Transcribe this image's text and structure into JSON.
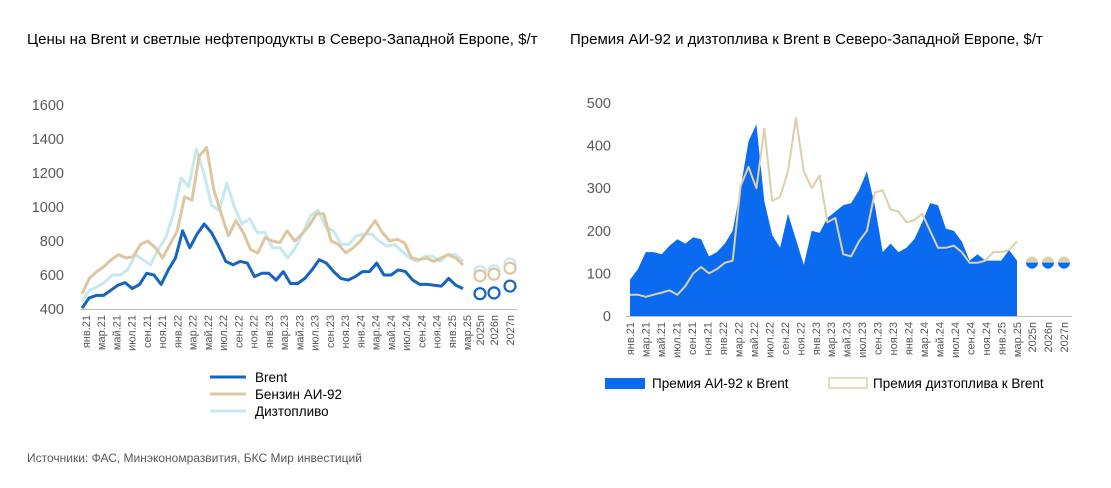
{
  "source": "Источники: ФАС, Минэкономразвития, БКС Мир инвестиций",
  "chart_data": [
    {
      "type": "line",
      "title": "Цены на Brent и светлые нефтепродукты в Северо-Западной Европе, $/т",
      "ylim": [
        400,
        1600
      ],
      "yticks": [
        "400",
        "600",
        "800",
        "1000",
        "1200",
        "1400",
        "1600"
      ],
      "grid": false,
      "legend": "bottom",
      "x_labels": [
        "янв.21",
        "мар.21",
        "май.21",
        "июл.21",
        "сен.21",
        "ноя.21",
        "янв.22",
        "мар.22",
        "май.22",
        "июл.22",
        "сен.22",
        "ноя.22",
        "янв.23",
        "мар.23",
        "май.23",
        "июл.23",
        "сен.23",
        "ноя.23",
        "янв.24",
        "мар.24",
        "май.24",
        "июл.24",
        "сен.24",
        "ноя.24",
        "янв.25",
        "мар.25"
      ],
      "forecast_labels": [
        "2025п",
        "2026п",
        "2027п"
      ],
      "series": [
        {
          "name": "Brent",
          "color": "#1565C0",
          "values": [
            405,
            465,
            480,
            480,
            510,
            540,
            555,
            520,
            545,
            610,
            600,
            545,
            630,
            700,
            860,
            760,
            840,
            900,
            850,
            770,
            680,
            660,
            680,
            670,
            590,
            610,
            610,
            570,
            620,
            550,
            550,
            580,
            630,
            690,
            670,
            620,
            580,
            570,
            590,
            620,
            620,
            670,
            600,
            600,
            630,
            620,
            570,
            545,
            545,
            540,
            535,
            580,
            540,
            520
          ],
          "forecast": [
            490,
            495,
            535
          ]
        },
        {
          "name": "Бензин АИ-92",
          "color": "#DCC8A0",
          "values": [
            490,
            580,
            620,
            650,
            690,
            720,
            700,
            710,
            780,
            800,
            760,
            700,
            780,
            860,
            1060,
            1040,
            1300,
            1350,
            1100,
            960,
            830,
            920,
            850,
            750,
            730,
            820,
            800,
            790,
            860,
            800,
            840,
            890,
            960,
            960,
            800,
            780,
            730,
            760,
            800,
            860,
            920,
            850,
            800,
            810,
            790,
            700,
            690,
            700,
            680,
            700,
            720,
            700,
            660
          ],
          "forecast": [
            595,
            605,
            640
          ]
        },
        {
          "name": "Дизтопливо",
          "color": "#C8E8F0",
          "values": [
            450,
            510,
            530,
            560,
            600,
            600,
            630,
            720,
            690,
            660,
            750,
            820,
            960,
            1170,
            1120,
            1340,
            1200,
            1010,
            980,
            1140,
            1000,
            900,
            930,
            850,
            850,
            760,
            760,
            700,
            760,
            850,
            950,
            980,
            880,
            860,
            780,
            780,
            830,
            840,
            840,
            800,
            770,
            780,
            740,
            700,
            680,
            710,
            710,
            680,
            720,
            720,
            680
          ],
          "forecast": [
            620,
            625,
            665
          ]
        }
      ]
    },
    {
      "type": "area",
      "title": "Премия АИ-92 и дизтоплива к Brent в Северо-Западной Европе, $/т",
      "ylim": [
        0,
        500
      ],
      "yticks": [
        "0",
        "100",
        "200",
        "300",
        "400",
        "500"
      ],
      "grid": false,
      "legend": "bottom",
      "x_labels": [
        "янв.21",
        "мар.21",
        "май.21",
        "июл.21",
        "сен.21",
        "ноя.21",
        "янв.22",
        "мар.22",
        "май.22",
        "июл.22",
        "сен.22",
        "ноя.22",
        "янв.23",
        "мар.23",
        "май.23",
        "июл.23",
        "сен.23",
        "ноя.23",
        "янв.24",
        "мар.24",
        "май.24",
        "июл.24",
        "сен.24",
        "ноя.24",
        "янв.25",
        "мар.25"
      ],
      "forecast_labels": [
        "2025п",
        "2026п",
        "2027п"
      ],
      "series": [
        {
          "name": "Премия АИ-92 к Brent",
          "color": "#0A6AF0",
          "values": [
            85,
            110,
            150,
            150,
            145,
            165,
            180,
            170,
            185,
            180,
            140,
            150,
            170,
            200,
            300,
            410,
            450,
            270,
            190,
            160,
            240,
            180,
            120,
            200,
            195,
            230,
            245,
            260,
            265,
            295,
            340,
            260,
            150,
            170,
            150,
            160,
            180,
            220,
            265,
            260,
            205,
            200,
            175,
            130,
            145,
            130,
            130,
            130,
            155,
            130
          ],
          "forecast": [
            125,
            125,
            125
          ]
        },
        {
          "name": "Премия дизтоплива к Brent",
          "color": "#DCD0A8",
          "values": [
            50,
            50,
            45,
            50,
            55,
            60,
            50,
            70,
            100,
            115,
            100,
            110,
            125,
            130,
            305,
            350,
            300,
            440,
            270,
            280,
            340,
            465,
            340,
            300,
            330,
            220,
            230,
            145,
            140,
            175,
            200,
            290,
            295,
            250,
            245,
            220,
            225,
            240,
            200,
            160,
            160,
            165,
            150,
            125,
            125,
            130,
            150,
            150,
            155,
            175
          ],
          "forecast": [
            135,
            135,
            135
          ]
        }
      ]
    }
  ]
}
